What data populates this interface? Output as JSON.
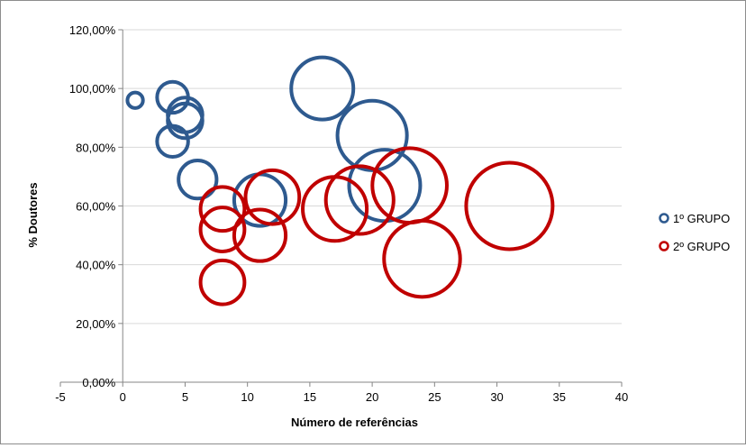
{
  "chart_data": {
    "type": "bubble",
    "xlabel": "Número de referências",
    "ylabel": "% Doutores",
    "xlim": [
      -5,
      40
    ],
    "ylim": [
      0,
      120
    ],
    "x_ticks": [
      -5,
      0,
      5,
      10,
      15,
      20,
      25,
      30,
      35,
      40
    ],
    "x_tick_labels": [
      "-5",
      "0",
      "5",
      "10",
      "15",
      "20",
      "25",
      "30",
      "35",
      "40"
    ],
    "y_ticks": [
      0,
      20,
      40,
      60,
      80,
      100,
      120
    ],
    "y_tick_labels": [
      "0,00%",
      "20,00%",
      "40,00%",
      "60,00%",
      "80,00%",
      "100,00%",
      "120,00%"
    ],
    "grid": "horizontal",
    "legend_position": "right",
    "series": [
      {
        "name": "1º GRUPO",
        "color": "#2E5A8F",
        "points": [
          {
            "x": 1,
            "y": 96,
            "size": 1
          },
          {
            "x": 4,
            "y": 97,
            "size": 4
          },
          {
            "x": 5,
            "y": 91,
            "size": 5
          },
          {
            "x": 5,
            "y": 89,
            "size": 5
          },
          {
            "x": 4,
            "y": 82,
            "size": 4
          },
          {
            "x": 6,
            "y": 69,
            "size": 6
          },
          {
            "x": 11,
            "y": 62,
            "size": 11
          },
          {
            "x": 16,
            "y": 100,
            "size": 16
          },
          {
            "x": 20,
            "y": 84,
            "size": 20
          },
          {
            "x": 21,
            "y": 67,
            "size": 21
          }
        ]
      },
      {
        "name": "2º GRUPO",
        "color": "#C00000",
        "points": [
          {
            "x": 8,
            "y": 59,
            "size": 8
          },
          {
            "x": 8,
            "y": 52,
            "size": 8
          },
          {
            "x": 8,
            "y": 34,
            "size": 8
          },
          {
            "x": 11,
            "y": 50,
            "size": 11
          },
          {
            "x": 12,
            "y": 63,
            "size": 12
          },
          {
            "x": 17,
            "y": 59,
            "size": 17
          },
          {
            "x": 19,
            "y": 62,
            "size": 19
          },
          {
            "x": 23,
            "y": 67,
            "size": 23
          },
          {
            "x": 24,
            "y": 42,
            "size": 24
          },
          {
            "x": 31,
            "y": 60,
            "size": 31
          }
        ]
      }
    ]
  }
}
